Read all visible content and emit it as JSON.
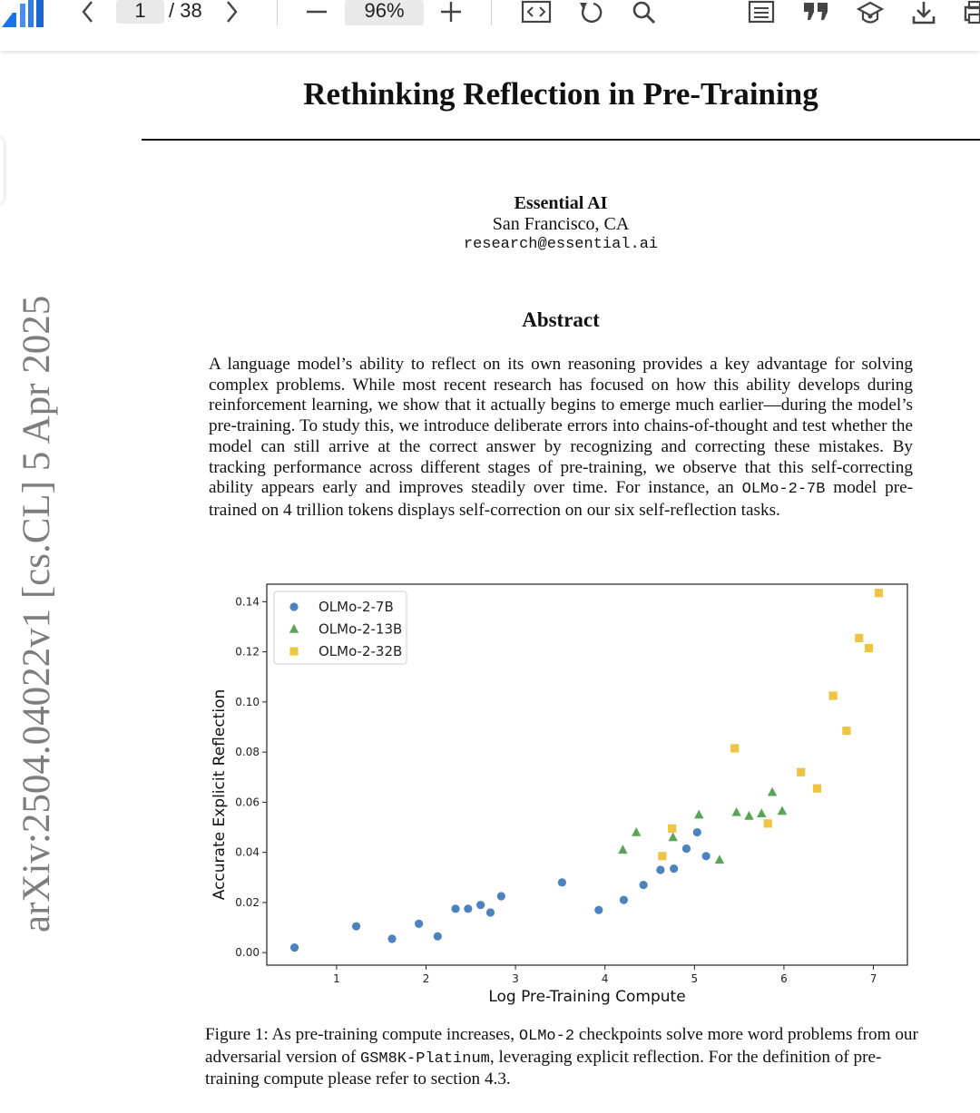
{
  "toolbar": {
    "page_current": "1",
    "page_total": "/ 38",
    "zoom": "96%"
  },
  "stamp": "arXiv:2504.04022v1  [cs.CL]  5 Apr 2025",
  "paper": {
    "title": "Rethinking Reflection in Pre-Training",
    "author_org": "Essential AI",
    "author_location": "San Francisco, CA",
    "author_email": "research@essential.ai",
    "abstract_heading": "Abstract",
    "abstract_part1": "A language model’s ability to reflect on its own reasoning provides a key advantage for solving complex problems. While most recent research has focused on how this ability develops during reinforcement learning, we show that it actually begins to emerge much earlier—during the model’s pre-training. To study this, we introduce deliberate errors into chains-of-thought and test whether the model can still arrive at the correct answer by recognizing and correcting these mistakes. By tracking performance across different stages of pre-training, we observe that this self-correcting ability appears early and improves steadily over time. For instance, an ",
    "abstract_code": "OLMo-2-7B",
    "abstract_part2": " model pre-trained on 4 trillion tokens displays self-correction on our six self-reflection tasks.",
    "caption_part1": "Figure 1: As pre-training compute increases, ",
    "caption_code1": "OLMo-2",
    "caption_part2": " checkpoints solve more word problems from our adversarial version of ",
    "caption_code2": "GSM8K-Platinum",
    "caption_part3": ", leveraging explicit reflection. For the definition of pre-training compute please refer to section 4.3."
  },
  "chart_data": {
    "type": "scatter",
    "xlabel": "Log Pre-Training Compute",
    "ylabel": "Accurate Explicit Reflection",
    "xlim": [
      0.22,
      7.38
    ],
    "ylim": [
      -0.005,
      0.147
    ],
    "xticks": [
      1,
      2,
      3,
      4,
      5,
      6,
      7
    ],
    "yticks": [
      0.0,
      0.02,
      0.04,
      0.06,
      0.08,
      0.1,
      0.12,
      0.14
    ],
    "ytick_labels": [
      "0.00",
      "0.02",
      "0.04",
      "0.06",
      "0.08",
      "0.10",
      "0.12",
      "0.14"
    ],
    "grid": false,
    "legend": "top-left",
    "series": [
      {
        "name": "OLMo-2-7B",
        "marker": "circle",
        "color": "#4c82be",
        "points": [
          [
            0.53,
            0.002
          ],
          [
            1.22,
            0.0105
          ],
          [
            1.62,
            0.0055
          ],
          [
            1.92,
            0.0115
          ],
          [
            2.13,
            0.0065
          ],
          [
            2.33,
            0.0175
          ],
          [
            2.47,
            0.0175
          ],
          [
            2.61,
            0.019
          ],
          [
            2.72,
            0.016
          ],
          [
            2.84,
            0.0225
          ],
          [
            3.52,
            0.028
          ],
          [
            3.93,
            0.017
          ],
          [
            4.21,
            0.021
          ],
          [
            4.43,
            0.027
          ],
          [
            4.62,
            0.033
          ],
          [
            4.77,
            0.0335
          ],
          [
            4.91,
            0.0415
          ],
          [
            5.03,
            0.048
          ],
          [
            5.13,
            0.0385
          ]
        ]
      },
      {
        "name": "OLMo-2-13B",
        "marker": "triangle",
        "color": "#5aa555",
        "points": [
          [
            4.2,
            0.041
          ],
          [
            4.35,
            0.048
          ],
          [
            4.76,
            0.046
          ],
          [
            5.05,
            0.055
          ],
          [
            5.28,
            0.037
          ],
          [
            5.47,
            0.056
          ],
          [
            5.61,
            0.0545
          ],
          [
            5.75,
            0.0555
          ],
          [
            5.87,
            0.064
          ],
          [
            5.98,
            0.0565
          ]
        ]
      },
      {
        "name": "OLMo-2-32B",
        "marker": "square",
        "color": "#eec443",
        "points": [
          [
            4.64,
            0.0385
          ],
          [
            4.75,
            0.0495
          ],
          [
            5.45,
            0.0815
          ],
          [
            5.82,
            0.0515
          ],
          [
            6.19,
            0.072
          ],
          [
            6.37,
            0.0655
          ],
          [
            6.55,
            0.1025
          ],
          [
            6.7,
            0.0885
          ],
          [
            6.84,
            0.1255
          ],
          [
            6.95,
            0.1215
          ],
          [
            7.06,
            0.1435
          ]
        ]
      }
    ]
  }
}
